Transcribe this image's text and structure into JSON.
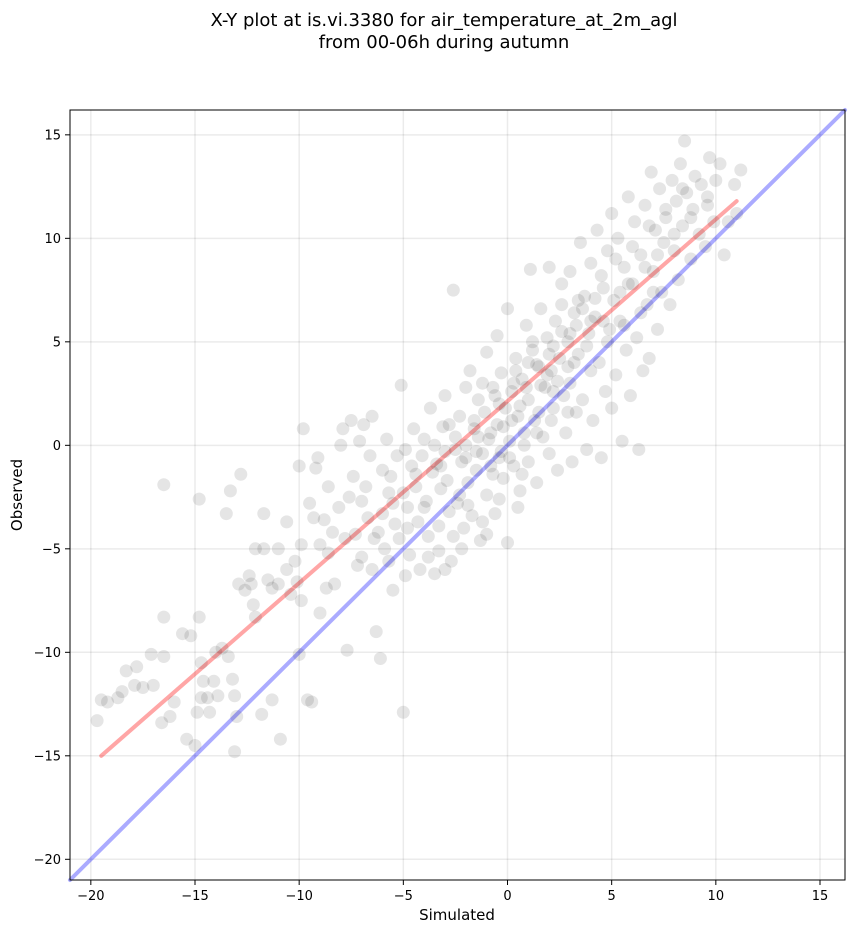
{
  "chart_data": {
    "type": "scatter",
    "title_line1": "X-Y plot at is.vi.3380 for air_temperature_at_2m_agl",
    "title_line2": "from 00-06h during autumn",
    "xlabel": "Simulated",
    "ylabel": "Observed",
    "xlim": [
      -21,
      16.2
    ],
    "ylim": [
      -21,
      16.2
    ],
    "xticks": [
      -20,
      -15,
      -10,
      -5,
      0,
      5,
      10,
      15
    ],
    "yticks": [
      -20,
      -15,
      -10,
      -5,
      0,
      5,
      10,
      15
    ],
    "xtick_labels": [
      "−20",
      "−15",
      "−10",
      "−5",
      "0",
      "5",
      "10",
      "15"
    ],
    "ytick_labels": [
      "−20",
      "−15",
      "−10",
      "−5",
      "0",
      "5",
      "10",
      "15"
    ],
    "grid": true,
    "point_color": "#000000",
    "identity_line": {
      "color": "#0000ff",
      "from": [
        -21,
        -21
      ],
      "to": [
        16.2,
        16.2
      ]
    },
    "fit_line": {
      "color": "#ff0000",
      "from": [
        -19.5,
        -15.0
      ],
      "to": [
        11.0,
        11.8
      ]
    },
    "points": [
      [
        -19.7,
        -13.3
      ],
      [
        -19.5,
        -12.3
      ],
      [
        -19.2,
        -12.4
      ],
      [
        -18.7,
        -12.2
      ],
      [
        -18.5,
        -11.9
      ],
      [
        -18.3,
        -10.9
      ],
      [
        -17.9,
        -11.6
      ],
      [
        -17.8,
        -10.7
      ],
      [
        -17.5,
        -11.7
      ],
      [
        -17.1,
        -10.1
      ],
      [
        -17.0,
        -11.6
      ],
      [
        -16.6,
        -13.4
      ],
      [
        -16.5,
        -10.2
      ],
      [
        -16.5,
        -8.3
      ],
      [
        -16.5,
        -1.9
      ],
      [
        -16.2,
        -13.1
      ],
      [
        -16.0,
        -12.4
      ],
      [
        -15.6,
        -9.1
      ],
      [
        -15.4,
        -14.2
      ],
      [
        -15.2,
        -9.2
      ],
      [
        -15.0,
        -14.5
      ],
      [
        -14.9,
        -12.9
      ],
      [
        -14.8,
        -8.3
      ],
      [
        -14.7,
        -12.2
      ],
      [
        -14.7,
        -10.5
      ],
      [
        -14.6,
        -11.4
      ],
      [
        -14.8,
        -2.6
      ],
      [
        -14.4,
        -12.2
      ],
      [
        -14.3,
        -12.9
      ],
      [
        -14.1,
        -11.4
      ],
      [
        -14.0,
        -10.0
      ],
      [
        -13.9,
        -12.1
      ],
      [
        -13.7,
        -9.8
      ],
      [
        -13.5,
        -3.3
      ],
      [
        -13.4,
        -10.2
      ],
      [
        -13.3,
        -2.2
      ],
      [
        -13.2,
        -11.3
      ],
      [
        -13.1,
        -14.8
      ],
      [
        -13.1,
        -12.1
      ],
      [
        -13.0,
        -13.1
      ],
      [
        -12.9,
        -6.7
      ],
      [
        -12.8,
        -1.4
      ],
      [
        -12.6,
        -7.0
      ],
      [
        -12.4,
        -6.3
      ],
      [
        -12.3,
        -6.7
      ],
      [
        -12.2,
        -7.7
      ],
      [
        -12.1,
        -8.3
      ],
      [
        -12.1,
        -5.0
      ],
      [
        -11.7,
        -5.0
      ],
      [
        -11.8,
        -13.0
      ],
      [
        -11.7,
        -3.3
      ],
      [
        -11.5,
        -6.5
      ],
      [
        -11.3,
        -6.9
      ],
      [
        -11.3,
        -12.3
      ],
      [
        -11.0,
        -6.7
      ],
      [
        -11.0,
        -5.0
      ],
      [
        -10.9,
        -14.2
      ],
      [
        -10.6,
        -3.7
      ],
      [
        -10.6,
        -6.0
      ],
      [
        -10.4,
        -7.2
      ],
      [
        -10.2,
        -5.6
      ],
      [
        -10.1,
        -6.6
      ],
      [
        -10.0,
        -10.1
      ],
      [
        -10.0,
        -1.0
      ],
      [
        -9.9,
        -4.8
      ],
      [
        -9.9,
        -7.5
      ],
      [
        -9.8,
        0.8
      ],
      [
        -9.6,
        -12.3
      ],
      [
        -9.5,
        -2.8
      ],
      [
        -9.4,
        -12.4
      ],
      [
        -9.3,
        -3.5
      ],
      [
        -9.2,
        -1.1
      ],
      [
        -9.1,
        -0.6
      ],
      [
        -9.0,
        -4.8
      ],
      [
        -9.0,
        -8.1
      ],
      [
        -8.8,
        -3.6
      ],
      [
        -8.7,
        -6.9
      ],
      [
        -8.6,
        -2.0
      ],
      [
        -8.4,
        -4.2
      ],
      [
        -8.3,
        -6.7
      ],
      [
        -8.1,
        -3.0
      ],
      [
        -8.0,
        0.0
      ],
      [
        -7.9,
        0.8
      ],
      [
        -7.7,
        -9.9
      ],
      [
        -7.6,
        -2.5
      ],
      [
        -7.5,
        1.2
      ],
      [
        -7.4,
        -1.5
      ],
      [
        -7.3,
        -4.3
      ],
      [
        -7.2,
        -5.8
      ],
      [
        -7.1,
        0.2
      ],
      [
        -7.0,
        -2.7
      ],
      [
        -6.9,
        1.0
      ],
      [
        -6.8,
        -2.0
      ],
      [
        -6.7,
        -3.5
      ],
      [
        -6.6,
        -0.5
      ],
      [
        -6.5,
        1.4
      ],
      [
        -6.4,
        -4.5
      ],
      [
        -6.3,
        -9.0
      ],
      [
        -6.1,
        -10.3
      ],
      [
        -6.0,
        -3.3
      ],
      [
        -6.0,
        -1.2
      ],
      [
        -5.9,
        -5.0
      ],
      [
        -5.8,
        0.3
      ],
      [
        -5.7,
        -2.3
      ],
      [
        -5.6,
        -1.5
      ],
      [
        -5.5,
        -7.0
      ],
      [
        -5.4,
        -3.8
      ],
      [
        -5.3,
        -0.5
      ],
      [
        -5.2,
        -4.5
      ],
      [
        -5.1,
        2.9
      ],
      [
        -5.0,
        -12.9
      ],
      [
        -5.0,
        -2.3
      ],
      [
        -4.9,
        -0.2
      ],
      [
        -4.8,
        -3.0
      ],
      [
        -4.7,
        -5.3
      ],
      [
        -4.6,
        -1.0
      ],
      [
        -4.5,
        0.8
      ],
      [
        -4.4,
        -2.0
      ],
      [
        -4.3,
        -3.7
      ],
      [
        -4.2,
        -6.0
      ],
      [
        -4.1,
        -0.5
      ],
      [
        -4.0,
        0.3
      ],
      [
        -3.9,
        -2.7
      ],
      [
        -3.8,
        -4.4
      ],
      [
        -3.7,
        1.8
      ],
      [
        -3.6,
        -1.3
      ],
      [
        -3.5,
        -6.2
      ],
      [
        -3.4,
        -0.9
      ],
      [
        -3.3,
        -5.1
      ],
      [
        -3.2,
        -2.1
      ],
      [
        -3.1,
        0.9
      ],
      [
        -3.0,
        -0.3
      ],
      [
        -3.0,
        2.4
      ],
      [
        -2.9,
        -1.7
      ],
      [
        -2.8,
        -3.2
      ],
      [
        -2.7,
        -5.6
      ],
      [
        -2.6,
        7.5
      ],
      [
        -2.5,
        0.4
      ],
      [
        -2.4,
        -2.8
      ],
      [
        -2.3,
        1.4
      ],
      [
        -2.2,
        -0.8
      ],
      [
        -2.1,
        -4.0
      ],
      [
        -2.0,
        2.8
      ],
      [
        -2.0,
        0.0
      ],
      [
        -1.9,
        -1.8
      ],
      [
        -1.8,
        3.6
      ],
      [
        -1.7,
        -3.4
      ],
      [
        -1.6,
        0.8
      ],
      [
        -1.5,
        -1.2
      ],
      [
        -1.4,
        2.2
      ],
      [
        -1.3,
        -4.6
      ],
      [
        -1.2,
        -0.4
      ],
      [
        -1.1,
        1.6
      ],
      [
        -1.0,
        -2.4
      ],
      [
        -1.0,
        4.5
      ],
      [
        -0.9,
        0.3
      ],
      [
        -0.8,
        -1.0
      ],
      [
        -0.7,
        2.8
      ],
      [
        -0.6,
        -3.3
      ],
      [
        -0.5,
        1.0
      ],
      [
        -0.5,
        5.3
      ],
      [
        -0.4,
        -0.6
      ],
      [
        -0.3,
        3.5
      ],
      [
        -0.2,
        -1.6
      ],
      [
        -0.1,
        1.8
      ],
      [
        0.0,
        6.6
      ],
      [
        0.0,
        -4.7
      ],
      [
        0.1,
        0.2
      ],
      [
        0.2,
        2.6
      ],
      [
        0.3,
        -1.0
      ],
      [
        0.4,
        4.2
      ],
      [
        0.5,
        1.4
      ],
      [
        0.6,
        -2.2
      ],
      [
        0.7,
        3.2
      ],
      [
        0.8,
        0.6
      ],
      [
        0.9,
        5.8
      ],
      [
        1.0,
        -0.8
      ],
      [
        1.0,
        2.2
      ],
      [
        1.1,
        8.5
      ],
      [
        1.2,
        4.6
      ],
      [
        1.3,
        1.2
      ],
      [
        1.4,
        -1.8
      ],
      [
        1.5,
        3.8
      ],
      [
        1.6,
        6.6
      ],
      [
        1.7,
        0.4
      ],
      [
        1.8,
        2.8
      ],
      [
        1.9,
        5.2
      ],
      [
        2.0,
        -0.4
      ],
      [
        2.0,
        8.6
      ],
      [
        2.1,
        3.6
      ],
      [
        2.2,
        1.8
      ],
      [
        2.3,
        6.0
      ],
      [
        2.4,
        -1.2
      ],
      [
        2.5,
        4.2
      ],
      [
        2.6,
        7.8
      ],
      [
        2.7,
        2.4
      ],
      [
        2.8,
        0.6
      ],
      [
        2.9,
        5.0
      ],
      [
        3.0,
        8.4
      ],
      [
        3.0,
        3.0
      ],
      [
        3.1,
        -0.8
      ],
      [
        3.2,
        6.4
      ],
      [
        3.3,
        1.6
      ],
      [
        3.4,
        4.4
      ],
      [
        3.5,
        9.8
      ],
      [
        3.6,
        2.2
      ],
      [
        3.7,
        7.2
      ],
      [
        3.8,
        -0.2
      ],
      [
        3.9,
        5.4
      ],
      [
        4.0,
        3.6
      ],
      [
        4.0,
        8.8
      ],
      [
        4.1,
        1.2
      ],
      [
        4.2,
        6.2
      ],
      [
        4.3,
        10.4
      ],
      [
        4.4,
        4.0
      ],
      [
        4.5,
        -0.6
      ],
      [
        4.6,
        7.6
      ],
      [
        4.7,
        2.6
      ],
      [
        4.8,
        9.4
      ],
      [
        4.9,
        5.6
      ],
      [
        5.0,
        11.2
      ],
      [
        5.0,
        1.8
      ],
      [
        5.1,
        7.0
      ],
      [
        5.2,
        3.4
      ],
      [
        5.3,
        10.0
      ],
      [
        5.4,
        6.0
      ],
      [
        5.5,
        0.2
      ],
      [
        5.6,
        8.6
      ],
      [
        5.7,
        4.6
      ],
      [
        5.8,
        12.0
      ],
      [
        5.9,
        2.4
      ],
      [
        6.0,
        7.8
      ],
      [
        6.1,
        10.8
      ],
      [
        6.2,
        5.2
      ],
      [
        6.3,
        -0.2
      ],
      [
        6.4,
        9.2
      ],
      [
        6.5,
        3.6
      ],
      [
        6.6,
        11.6
      ],
      [
        6.7,
        6.8
      ],
      [
        6.8,
        4.2
      ],
      [
        6.9,
        13.2
      ],
      [
        7.0,
        8.4
      ],
      [
        7.1,
        10.4
      ],
      [
        7.2,
        5.6
      ],
      [
        7.3,
        12.4
      ],
      [
        7.4,
        7.4
      ],
      [
        7.5,
        9.8
      ],
      [
        7.6,
        11.0
      ],
      [
        7.8,
        6.8
      ],
      [
        7.9,
        12.8
      ],
      [
        8.0,
        9.4
      ],
      [
        8.1,
        11.8
      ],
      [
        8.2,
        8.0
      ],
      [
        8.3,
        13.6
      ],
      [
        8.4,
        10.6
      ],
      [
        8.5,
        14.7
      ],
      [
        8.6,
        12.2
      ],
      [
        8.8,
        9.0
      ],
      [
        8.9,
        11.4
      ],
      [
        9.0,
        13.0
      ],
      [
        9.2,
        10.2
      ],
      [
        9.3,
        12.6
      ],
      [
        9.5,
        9.6
      ],
      [
        9.6,
        11.6
      ],
      [
        9.7,
        13.9
      ],
      [
        9.9,
        10.8
      ],
      [
        10.0,
        12.8
      ],
      [
        10.2,
        13.6
      ],
      [
        10.4,
        9.2
      ],
      [
        10.6,
        10.8
      ],
      [
        10.9,
        12.6
      ],
      [
        11.0,
        11.2
      ],
      [
        11.2,
        13.3
      ],
      [
        -0.4,
        2.0
      ],
      [
        0.3,
        3.0
      ],
      [
        1.0,
        4.0
      ],
      [
        1.6,
        2.9
      ],
      [
        2.2,
        4.8
      ],
      [
        -0.8,
        0.6
      ],
      [
        0.6,
        1.9
      ],
      [
        1.9,
        3.4
      ],
      [
        2.6,
        5.5
      ],
      [
        3.3,
        5.8
      ],
      [
        -1.4,
        0.4
      ],
      [
        -0.2,
        0.9
      ],
      [
        0.9,
        2.8
      ],
      [
        1.4,
        3.9
      ],
      [
        2.4,
        3.1
      ],
      [
        3.6,
        6.6
      ],
      [
        4.2,
        7.1
      ],
      [
        -2.5,
        -0.2
      ],
      [
        -1.6,
        1.2
      ],
      [
        -0.6,
        2.4
      ],
      [
        0.4,
        3.6
      ],
      [
        1.2,
        5.0
      ],
      [
        2.0,
        4.4
      ],
      [
        2.9,
        3.8
      ],
      [
        3.8,
        4.8
      ],
      [
        4.6,
        6.0
      ],
      [
        5.4,
        7.4
      ],
      [
        -3.5,
        0.0
      ],
      [
        -2.8,
        1.0
      ],
      [
        -2.0,
        -0.6
      ],
      [
        -1.2,
        3.0
      ],
      [
        -0.3,
        -0.3
      ],
      [
        0.2,
        1.2
      ],
      [
        0.8,
        0.0
      ],
      [
        1.5,
        1.6
      ],
      [
        2.2,
        2.6
      ],
      [
        3.2,
        4.0
      ],
      [
        -4.4,
        -1.4
      ],
      [
        -3.2,
        -1.0
      ],
      [
        -2.3,
        -2.4
      ],
      [
        -1.5,
        -0.3
      ],
      [
        -0.7,
        -1.4
      ],
      [
        0.1,
        -0.6
      ],
      [
        0.7,
        -1.4
      ],
      [
        1.4,
        0.6
      ],
      [
        2.1,
        1.2
      ],
      [
        2.9,
        1.6
      ],
      [
        -6.2,
        -4.2
      ],
      [
        -5.5,
        -2.8
      ],
      [
        -4.8,
        -4.0
      ],
      [
        -4.0,
        -3.0
      ],
      [
        -3.3,
        -3.9
      ],
      [
        -2.6,
        -4.4
      ],
      [
        -1.9,
        -2.9
      ],
      [
        -1.2,
        -3.7
      ],
      [
        -0.4,
        -2.6
      ],
      [
        0.5,
        -3.0
      ],
      [
        -8.6,
        -5.2
      ],
      [
        -7.8,
        -4.5
      ],
      [
        -7.0,
        -5.4
      ],
      [
        -6.5,
        -6.0
      ],
      [
        -5.7,
        -5.6
      ],
      [
        -4.9,
        -6.3
      ],
      [
        -3.8,
        -5.4
      ],
      [
        -3.0,
        -6.0
      ],
      [
        -2.2,
        -5.0
      ],
      [
        -1.0,
        -4.3
      ],
      [
        4.5,
        8.2
      ],
      [
        5.2,
        9.0
      ],
      [
        6.0,
        9.6
      ],
      [
        6.8,
        10.6
      ],
      [
        7.6,
        11.4
      ],
      [
        8.4,
        12.4
      ],
      [
        3.4,
        7.0
      ],
      [
        4.0,
        6.0
      ],
      [
        5.8,
        7.8
      ],
      [
        6.6,
        8.6
      ],
      [
        7.2,
        9.2
      ],
      [
        8.0,
        10.2
      ],
      [
        8.8,
        11.0
      ],
      [
        9.6,
        12.0
      ],
      [
        2.6,
        6.8
      ],
      [
        3.0,
        5.4
      ],
      [
        4.8,
        5.0
      ],
      [
        5.6,
        5.8
      ],
      [
        6.4,
        6.4
      ],
      [
        7.0,
        7.4
      ]
    ]
  }
}
